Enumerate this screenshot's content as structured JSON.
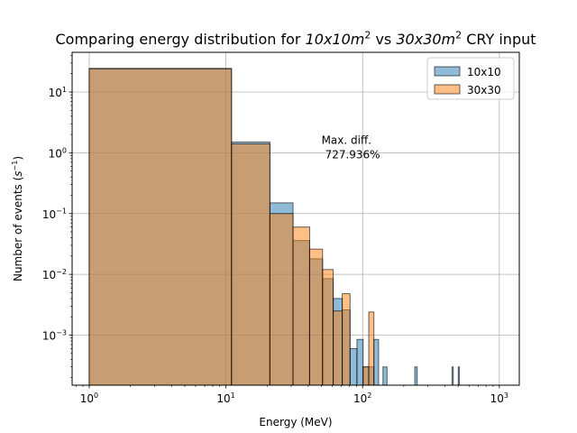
{
  "chart_data": {
    "type": "bar",
    "title_main": "Comparing energy distribution for 10",
    "title_parts": [
      {
        "text": "Comparing energy distribution for ",
        "style": "normal"
      },
      {
        "text": "10x10m",
        "style": "italic"
      },
      {
        "text": "2",
        "style": "sup"
      },
      {
        "text": " vs ",
        "style": "normal"
      },
      {
        "text": "30x30m",
        "style": "italic"
      },
      {
        "text": "2",
        "style": "sup"
      },
      {
        "text": " CRY input",
        "style": "normal"
      }
    ],
    "xlabel": "Energy (MeV)",
    "ylabel_parts": [
      {
        "text": "Number of events (",
        "style": "normal"
      },
      {
        "text": "s",
        "style": "italic"
      },
      {
        "text": "−1",
        "style": "sup"
      },
      {
        "text": ")",
        "style": "normal"
      }
    ],
    "xscale": "log",
    "yscale": "log",
    "xlim": [
      0.75,
      1400
    ],
    "ylim": [
      0.00015,
      45
    ],
    "grid": true,
    "legend_position": "upper right",
    "x_ticks": [
      {
        "value": 1,
        "base": "10",
        "exp": "0"
      },
      {
        "value": 10,
        "base": "10",
        "exp": "1"
      },
      {
        "value": 100,
        "base": "10",
        "exp": "2"
      },
      {
        "value": 1000,
        "base": "10",
        "exp": "3"
      }
    ],
    "y_ticks": [
      {
        "value": 0.001,
        "base": "10",
        "exp": "−3"
      },
      {
        "value": 0.01,
        "base": "10",
        "exp": "−2"
      },
      {
        "value": 0.1,
        "base": "10",
        "exp": "−1"
      },
      {
        "value": 1,
        "base": "10",
        "exp": "0"
      },
      {
        "value": 10,
        "base": "10",
        "exp": "1"
      }
    ],
    "bin_edges": [
      1.0,
      10.99,
      20.98,
      30.97,
      40.96,
      50.95,
      60.94,
      70.93,
      80.92,
      90.91,
      100.9,
      110.89,
      120.88,
      130.87,
      140.86,
      150.85,
      160.84,
      170.83,
      180.82,
      190.81,
      200.8,
      210.79,
      220.78,
      230.77,
      240.76,
      250.75,
      260.74,
      270.73,
      280.72,
      290.71,
      300.7,
      310.69,
      320.68,
      330.67,
      340.66,
      350.65,
      360.64,
      370.63,
      380.62,
      390.61,
      400.6,
      410.59,
      420.58,
      430.57,
      440.56,
      450.55,
      460.54,
      470.53,
      480.52,
      490.51,
      500.5,
      510.49,
      520.48,
      530.47,
      540.46,
      550.45,
      560.44,
      570.43,
      580.42,
      590.41,
      600.4,
      610.39,
      620.38,
      630.37,
      640.36,
      650.35,
      660.34,
      670.33,
      680.32,
      690.31,
      700.3,
      710.29,
      720.28,
      730.27,
      740.26,
      750.25,
      760.24,
      770.23,
      780.22,
      790.21,
      800.2,
      810.19,
      820.18,
      830.17,
      840.16,
      850.15,
      860.14,
      870.13,
      880.12,
      890.11,
      900.1,
      910.09,
      920.08,
      930.07,
      940.06,
      950.05,
      960.04,
      970.03,
      980.02,
      990.01,
      1000.0
    ],
    "series": [
      {
        "name": "10x10",
        "color": "#1f77b4",
        "values": [
          24.5,
          1.5,
          0.15,
          0.036,
          0.018,
          0.0085,
          0.004,
          0.0026,
          0.0006,
          0.00085,
          0.0003,
          0.0003,
          0.00085,
          0,
          0.0003,
          0,
          0,
          0,
          0,
          0,
          0,
          0,
          0,
          0,
          0.0003,
          0,
          0,
          0,
          0,
          0,
          0,
          0,
          0,
          0,
          0,
          0,
          0,
          0,
          0,
          0,
          0,
          0,
          0,
          0,
          0,
          0.0003,
          0,
          0,
          0,
          0,
          0.0003,
          0,
          0,
          0,
          0,
          0,
          0,
          0,
          0,
          0,
          0,
          0,
          0,
          0,
          0,
          0,
          0,
          0,
          0,
          0,
          0,
          0,
          0,
          0,
          0,
          0,
          0,
          0,
          0,
          0,
          0,
          0,
          0,
          0,
          0,
          0,
          0,
          0,
          0,
          0,
          0,
          0,
          0,
          0,
          0,
          0,
          0,
          0,
          0
        ]
      },
      {
        "name": "30x30",
        "color": "#ff7f0e",
        "values": [
          24.0,
          1.4,
          0.1,
          0.06,
          0.026,
          0.012,
          0.0025,
          0.0048,
          0,
          0,
          0.0003,
          0.0024,
          0,
          0,
          0,
          0,
          0,
          0,
          0,
          0,
          0,
          0,
          0,
          0,
          0,
          0,
          0,
          0,
          0,
          0,
          0,
          0,
          0,
          0,
          0,
          0,
          0,
          0,
          0,
          0,
          0,
          0,
          0,
          0,
          0,
          0,
          0,
          0,
          0,
          0,
          0,
          0,
          0,
          0,
          0,
          0,
          0,
          0,
          0,
          0,
          0,
          0,
          0,
          0,
          0,
          0,
          0,
          0,
          0,
          0,
          0,
          0,
          0,
          0,
          0,
          0,
          0,
          0,
          0,
          0,
          0,
          0,
          0,
          0,
          0,
          0,
          0,
          0,
          0,
          0,
          0,
          0,
          0,
          0,
          0,
          0,
          0,
          0,
          0
        ]
      }
    ],
    "annotation": {
      "line1": "Max. diff.",
      "line2": "727.936%",
      "x": 50,
      "y": 1.3
    }
  }
}
